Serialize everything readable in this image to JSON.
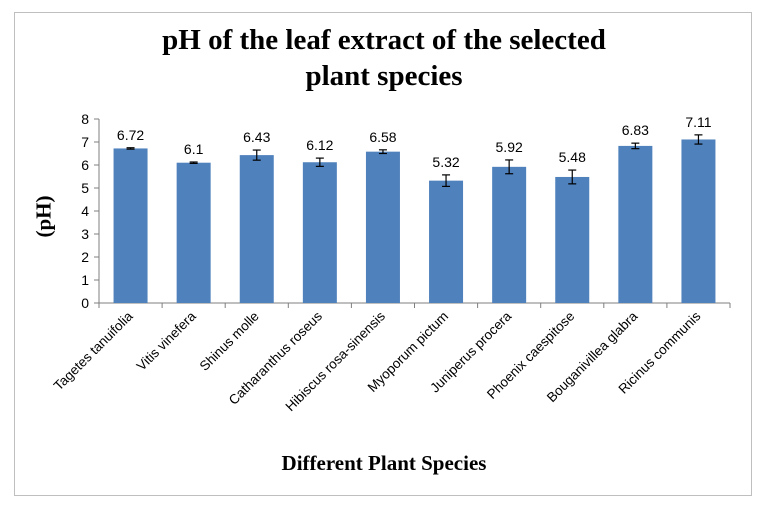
{
  "chart_data": {
    "type": "bar",
    "title_lines": [
      "pH of the leaf extract of the selected",
      "plant species"
    ],
    "xlabel": "Different Plant Species",
    "ylabel": "(pH)",
    "categories": [
      "Tagetes tanuifolia",
      "Vitis vinefera",
      "Shinus molle",
      "Catharanthus roseus",
      "Hibiscus rosa-sinensis",
      "Myoporum pictum",
      "Juniperus procera",
      "Phoenix caespitose",
      "Bouganivillea glabra",
      "Ricinus communis"
    ],
    "values": [
      6.72,
      6.1,
      6.43,
      6.12,
      6.58,
      5.32,
      5.92,
      5.48,
      6.83,
      7.11
    ],
    "value_labels": [
      "6.72",
      "6.1",
      "6.43",
      "6.12",
      "6.58",
      "5.32",
      "5.92",
      "5.48",
      "6.83",
      "7.11"
    ],
    "error_bars": [
      0.03,
      0.03,
      0.22,
      0.18,
      0.08,
      0.25,
      0.3,
      0.3,
      0.12,
      0.2
    ],
    "ylim": [
      0,
      8
    ],
    "yticks": [
      "0",
      "1",
      "2",
      "3",
      "4",
      "5",
      "6",
      "7",
      "8"
    ],
    "grid": false,
    "legend": "none",
    "colors": {
      "bar": "#4f81bd",
      "axis": "#7f7f7f",
      "text": "#000000"
    }
  }
}
